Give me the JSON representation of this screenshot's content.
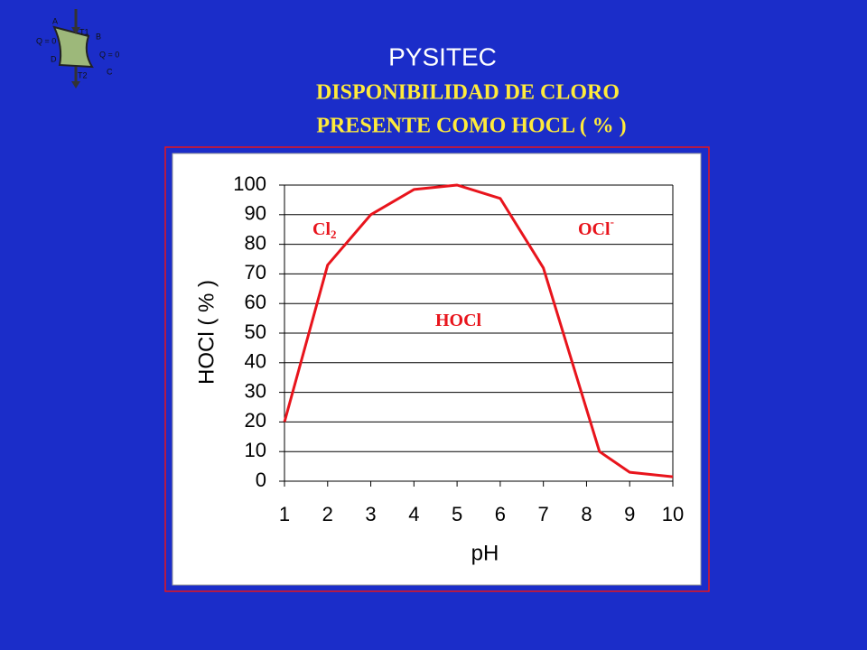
{
  "header": "PYSITEC",
  "title_lines": [
    "DISPONIBILIDAD DE CLORO",
    "PRESENTE COMO HOCL ( % )"
  ],
  "logo": {
    "corners": [
      "A",
      "B",
      "C",
      "D"
    ],
    "temps": [
      "T1",
      "T2"
    ],
    "heat": [
      "Q = 0",
      "Q = 0"
    ]
  },
  "chart_data": {
    "type": "line",
    "x": [
      1,
      2,
      3,
      4,
      5,
      6,
      7,
      8.3,
      9,
      10
    ],
    "series": [
      {
        "name": "HOCl",
        "color": "#e8141c",
        "values": [
          20,
          73,
          90,
          98.5,
          100,
          95.5,
          72,
          10,
          3,
          1.5
        ]
      }
    ],
    "xlim": [
      1,
      10
    ],
    "xticks": [
      1,
      2,
      3,
      4,
      5,
      6,
      7,
      8,
      9,
      10
    ],
    "ylim": [
      0,
      100
    ],
    "yticks": [
      0,
      10,
      20,
      30,
      40,
      50,
      60,
      70,
      80,
      90,
      100
    ],
    "grid": true,
    "x_label": "pH",
    "y_label": "HOCl ( % )",
    "annotations": [
      {
        "text": "Cl",
        "sub": "2"
      },
      {
        "text": "OCl",
        "sup": "-"
      },
      {
        "text": "HOCl"
      }
    ]
  }
}
